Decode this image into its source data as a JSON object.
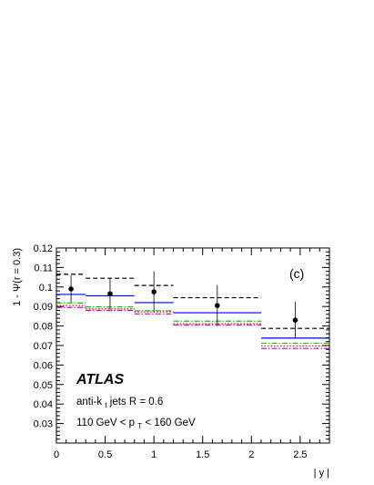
{
  "chart_data": {
    "type": "scatter",
    "panel_label": "(c)",
    "xlabel": "| y |",
    "ylabel": "1 - Ψ(r = 0.3)",
    "xlim": [
      0,
      2.8
    ],
    "ylim": [
      0.02,
      0.12
    ],
    "x_ticks": [
      "0",
      "0.5",
      "1",
      "1.5",
      "2",
      "2.5"
    ],
    "y_ticks": [
      "0.03",
      "0.04",
      "0.05",
      "0.06",
      "0.07",
      "0.08",
      "0.09",
      "0.1",
      "0.11",
      "0.12"
    ],
    "bins": [
      [
        0,
        0.3
      ],
      [
        0.3,
        0.8
      ],
      [
        0.8,
        1.2
      ],
      [
        1.2,
        2.1
      ],
      [
        2.1,
        2.8
      ]
    ],
    "data_points": {
      "x": [
        0.15,
        0.55,
        1.0,
        1.65,
        2.45
      ],
      "y": [
        0.099,
        0.0965,
        0.0975,
        0.0905,
        0.083
      ],
      "err": [
        0.007,
        0.008,
        0.0105,
        0.0105,
        0.0095
      ]
    },
    "series": [
      {
        "style": "dashed",
        "color": "#000000",
        "values": [
          0.1065,
          0.1045,
          0.1008,
          0.0945,
          0.0788
        ]
      },
      {
        "style": "solid",
        "color": "#0000ff",
        "values": [
          0.0962,
          0.0955,
          0.092,
          0.0868,
          0.0738
        ]
      },
      {
        "style": "dash-dot",
        "color": "#00cc00",
        "values": [
          0.0918,
          0.0898,
          0.0878,
          0.0825,
          0.0712
        ]
      },
      {
        "style": "dotted",
        "color": "#ff0000",
        "values": [
          0.0905,
          0.0888,
          0.0872,
          0.0812,
          0.0698
        ]
      },
      {
        "style": "dash-dot",
        "color": "#cc00cc",
        "values": [
          0.0895,
          0.088,
          0.0862,
          0.0805,
          0.0685
        ]
      }
    ],
    "annotations": {
      "experiment": "ATLAS",
      "jet_line_pre": "anti-k",
      "jet_line_sub": "t",
      "jet_line_post": " jets R = 0.6",
      "pt_line_pre": "110 GeV < p",
      "pt_line_sub": "T",
      "pt_line_post": " < 160 GeV"
    }
  }
}
